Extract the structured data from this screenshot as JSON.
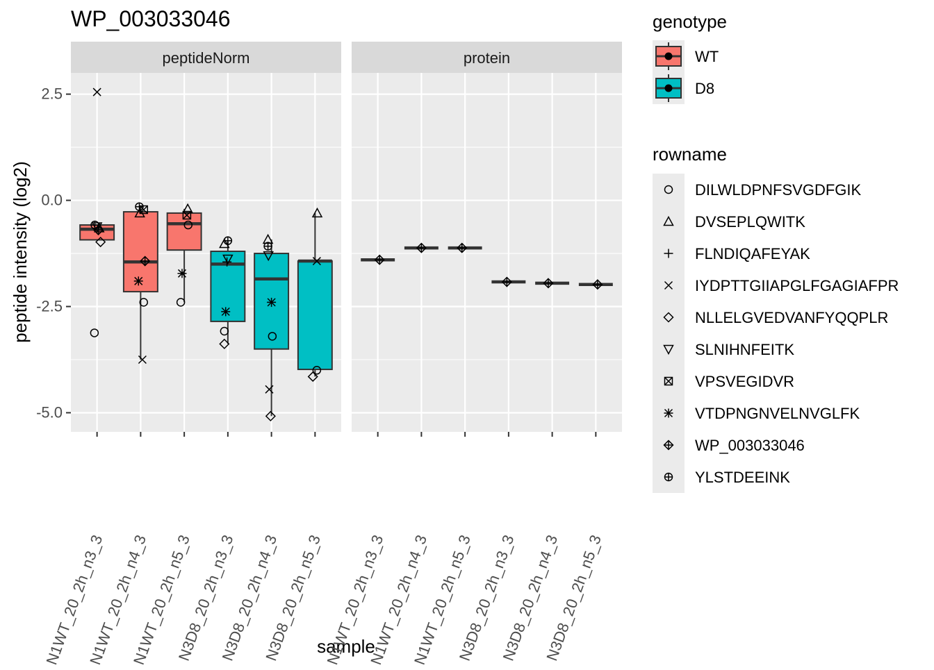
{
  "colors": {
    "panel_bg": "#EBEBEB",
    "strip_bg": "#D9D9D9",
    "grid": "#FFFFFF",
    "WT": "#F8766D",
    "D8": "#00BFC4",
    "ink": "#1A1A1A",
    "tick_text": "#4D4D4D"
  },
  "chart_data": {
    "type": "boxplot",
    "title": "WP_003033046",
    "xlabel": "sample",
    "ylabel": "peptide intensity (log2)",
    "ylim": [
      -5.45,
      3.0
    ],
    "yticks": [
      2.5,
      0.0,
      -2.5,
      -5.0
    ],
    "ytick_labels": [
      "2.5",
      "0.0",
      "-2.5",
      "-5.0"
    ],
    "samples": [
      {
        "label": "N1WT_20_2h_n3_3",
        "genotype": "WT"
      },
      {
        "label": "N1WT_20_2h_n4_3",
        "genotype": "WT"
      },
      {
        "label": "N1WT_20_2h_n5_3",
        "genotype": "WT"
      },
      {
        "label": "N3D8_20_2h_n3_3",
        "genotype": "D8"
      },
      {
        "label": "N3D8_20_2h_n4_3",
        "genotype": "D8"
      },
      {
        "label": "N3D8_20_2h_n5_3",
        "genotype": "D8"
      }
    ],
    "panels": [
      {
        "name": "peptideNorm",
        "boxes": [
          {
            "q1": -0.93,
            "median": -0.68,
            "q3": -0.58,
            "whisker_low": -0.93,
            "whisker_high": -0.58
          },
          {
            "q1": -2.15,
            "median": -1.45,
            "q3": -0.27,
            "whisker_low": -3.75,
            "whisker_high": -0.15
          },
          {
            "q1": -1.17,
            "median": -0.55,
            "q3": -0.3,
            "whisker_low": -2.4,
            "whisker_high": -0.2
          },
          {
            "q1": -2.85,
            "median": -1.5,
            "q3": -1.2,
            "whisker_low": -3.38,
            "whisker_high": -0.95
          },
          {
            "q1": -3.5,
            "median": -1.85,
            "q3": -1.25,
            "whisker_low": -5.08,
            "whisker_high": -0.92
          },
          {
            "q1": -3.98,
            "median": -1.43,
            "q3": -1.43,
            "whisker_low": -4.15,
            "whisker_high": -0.3
          }
        ],
        "points": [
          {
            "sample": 0,
            "dx": 0.0,
            "peptide": "IYDPTTGIIAPGLFGAGIAFPR",
            "y": 2.55
          },
          {
            "sample": 0,
            "dx": -0.06,
            "peptide": "DILWLDPNFSVGDFGIK",
            "y": -3.12
          },
          {
            "sample": 0,
            "dx": -0.05,
            "peptide": "YLSTDEEINK",
            "y": -0.58
          },
          {
            "sample": 0,
            "dx": 0.0,
            "peptide": "SLNIHNFEITK",
            "y": -0.62
          },
          {
            "sample": 0,
            "dx": 0.05,
            "peptide": "DVSEPLQWITK",
            "y": -0.65
          },
          {
            "sample": 0,
            "dx": 0.03,
            "peptide": "WP_003033046",
            "y": -0.7
          },
          {
            "sample": 0,
            "dx": 0.08,
            "peptide": "NLLELGVEDVANFYQQPLR",
            "y": -0.98
          },
          {
            "sample": 1,
            "dx": -0.03,
            "peptide": "YLSTDEEINK",
            "y": -0.15
          },
          {
            "sample": 1,
            "dx": 0.07,
            "peptide": "VPSVEGIDVR",
            "y": -0.22
          },
          {
            "sample": 1,
            "dx": -0.02,
            "peptide": "DVSEPLQWITK",
            "y": -0.3
          },
          {
            "sample": 1,
            "dx": 0.1,
            "peptide": "WP_003033046",
            "y": -1.43
          },
          {
            "sample": 1,
            "dx": -0.05,
            "peptide": "VTDPNGNVELNVGLFK",
            "y": -1.9
          },
          {
            "sample": 1,
            "dx": 0.07,
            "peptide": "DILWLDPNFSVGDFGIK",
            "y": -2.4
          },
          {
            "sample": 1,
            "dx": 0.04,
            "peptide": "IYDPTTGIIAPGLFGAGIAFPR",
            "y": -3.75
          },
          {
            "sample": 2,
            "dx": 0.08,
            "peptide": "DVSEPLQWITK",
            "y": -0.2
          },
          {
            "sample": 2,
            "dx": 0.06,
            "peptide": "VPSVEGIDVR",
            "y": -0.35
          },
          {
            "sample": 2,
            "dx": 0.09,
            "peptide": "DILWLDPNFSVGDFGIK",
            "y": -0.58
          },
          {
            "sample": 2,
            "dx": -0.05,
            "peptide": "VTDPNGNVELNVGLFK",
            "y": -1.72
          },
          {
            "sample": 2,
            "dx": -0.08,
            "peptide": "DILWLDPNFSVGDFGIK",
            "y": -2.4
          },
          {
            "sample": 3,
            "dx": 0.0,
            "peptide": "YLSTDEEINK",
            "y": -0.95
          },
          {
            "sample": 3,
            "dx": -0.08,
            "peptide": "DVSEPLQWITK",
            "y": -1.02
          },
          {
            "sample": 3,
            "dx": 0.0,
            "peptide": "SLNIHNFEITK",
            "y": -1.38
          },
          {
            "sample": 3,
            "dx": -0.02,
            "peptide": "FLNDIQAFEYAK",
            "y": -1.45
          },
          {
            "sample": 3,
            "dx": -0.05,
            "peptide": "VTDPNGNVELNVGLFK",
            "y": -2.62
          },
          {
            "sample": 3,
            "dx": -0.08,
            "peptide": "DILWLDPNFSVGDFGIK",
            "y": -3.08
          },
          {
            "sample": 3,
            "dx": -0.08,
            "peptide": "NLLELGVEDVANFYQQPLR",
            "y": -3.38
          },
          {
            "sample": 4,
            "dx": -0.08,
            "peptide": "DVSEPLQWITK",
            "y": -0.92
          },
          {
            "sample": 4,
            "dx": -0.08,
            "peptide": "YLSTDEEINK",
            "y": -1.08
          },
          {
            "sample": 4,
            "dx": -0.07,
            "peptide": "SLNIHNFEITK",
            "y": -1.3
          },
          {
            "sample": 4,
            "dx": 0.0,
            "peptide": "VTDPNGNVELNVGLFK",
            "y": -2.4
          },
          {
            "sample": 4,
            "dx": 0.02,
            "peptide": "DILWLDPNFSVGDFGIK",
            "y": -3.2
          },
          {
            "sample": 4,
            "dx": -0.05,
            "peptide": "IYDPTTGIIAPGLFGAGIAFPR",
            "y": -4.45
          },
          {
            "sample": 4,
            "dx": -0.02,
            "peptide": "NLLELGVEDVANFYQQPLR",
            "y": -5.08
          },
          {
            "sample": 5,
            "dx": 0.05,
            "peptide": "DVSEPLQWITK",
            "y": -0.3
          },
          {
            "sample": 5,
            "dx": 0.04,
            "peptide": "IYDPTTGIIAPGLFGAGIAFPR",
            "y": -1.43
          },
          {
            "sample": 5,
            "dx": 0.04,
            "peptide": "DILWLDPNFSVGDFGIK",
            "y": -4.0
          },
          {
            "sample": 5,
            "dx": -0.05,
            "peptide": "NLLELGVEDVANFYQQPLR",
            "y": -4.15
          }
        ]
      },
      {
        "name": "protein",
        "boxes": [
          {
            "q1": -1.4,
            "median": -1.4,
            "q3": -1.4,
            "whisker_low": -1.4,
            "whisker_high": -1.4
          },
          {
            "q1": -1.12,
            "median": -1.12,
            "q3": -1.12,
            "whisker_low": -1.12,
            "whisker_high": -1.12
          },
          {
            "q1": -1.12,
            "median": -1.12,
            "q3": -1.12,
            "whisker_low": -1.12,
            "whisker_high": -1.12
          },
          {
            "q1": -1.92,
            "median": -1.92,
            "q3": -1.92,
            "whisker_low": -1.92,
            "whisker_high": -1.92
          },
          {
            "q1": -1.95,
            "median": -1.95,
            "q3": -1.95,
            "whisker_low": -1.95,
            "whisker_high": -1.95
          },
          {
            "q1": -1.98,
            "median": -1.98,
            "q3": -1.98,
            "whisker_low": -1.98,
            "whisker_high": -1.98
          }
        ],
        "points": [
          {
            "sample": 0,
            "dx": 0.04,
            "peptide": "WP_003033046",
            "y": -1.4
          },
          {
            "sample": 1,
            "dx": 0.0,
            "peptide": "WP_003033046",
            "y": -1.12
          },
          {
            "sample": 2,
            "dx": -0.07,
            "peptide": "WP_003033046",
            "y": -1.12
          },
          {
            "sample": 3,
            "dx": -0.04,
            "peptide": "WP_003033046",
            "y": -1.92
          },
          {
            "sample": 4,
            "dx": -0.09,
            "peptide": "WP_003033046",
            "y": -1.95
          },
          {
            "sample": 5,
            "dx": 0.04,
            "peptide": "WP_003033046",
            "y": -1.98
          }
        ]
      }
    ],
    "legends": [
      {
        "title": "genotype",
        "type": "fill",
        "items": [
          {
            "label": "WT",
            "color": "#F8766D"
          },
          {
            "label": "D8",
            "color": "#00BFC4"
          }
        ]
      },
      {
        "title": "rowname",
        "type": "shape",
        "items": [
          {
            "label": "DILWLDPNFSVGDFGIK",
            "shape": "circle"
          },
          {
            "label": "DVSEPLQWITK",
            "shape": "triangle-up"
          },
          {
            "label": "FLNDIQAFEYAK",
            "shape": "plus"
          },
          {
            "label": "IYDPTTGIIAPGLFGAGIAFPR",
            "shape": "cross"
          },
          {
            "label": "NLLELGVEDVANFYQQPLR",
            "shape": "diamond"
          },
          {
            "label": "SLNIHNFEITK",
            "shape": "triangle-down"
          },
          {
            "label": "VPSVEGIDVR",
            "shape": "square-cross"
          },
          {
            "label": "VTDPNGNVELNVGLFK",
            "shape": "asterisk"
          },
          {
            "label": "WP_003033046",
            "shape": "diamond-plus"
          },
          {
            "label": "YLSTDEEINK",
            "shape": "circle-plus"
          }
        ]
      }
    ]
  }
}
